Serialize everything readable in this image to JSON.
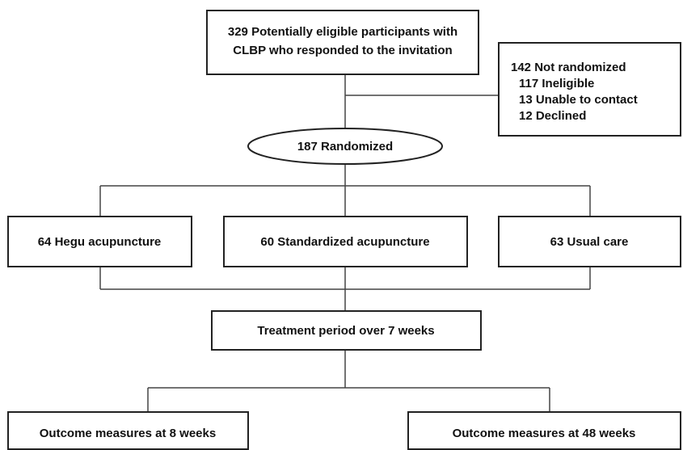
{
  "nodes": [
    {
      "lines": [
        "329 Potentially eligible participants with",
        "CLBP who responded to the invitation"
      ]
    },
    {
      "lines": [
        "142 Not randomized",
        "117 Ineligible",
        "13 Unable to contact",
        "12 Declined"
      ]
    },
    {
      "lines": [
        "187 Randomized"
      ]
    },
    {
      "lines": [
        "64 Hegu acupuncture"
      ]
    },
    {
      "lines": [
        "60 Standardized acupuncture"
      ]
    },
    {
      "lines": [
        "63 Usual care"
      ]
    },
    {
      "lines": [
        "Treatment period over 7 weeks"
      ]
    },
    {
      "lines": [
        "Outcome measures at 8 weeks"
      ]
    },
    {
      "lines": [
        "Outcome measures at 48 weeks"
      ]
    }
  ]
}
